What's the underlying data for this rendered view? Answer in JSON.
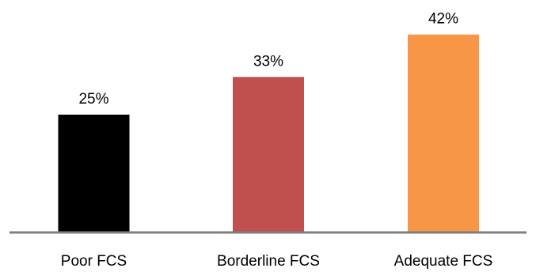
{
  "chart_data": {
    "type": "bar",
    "title": "",
    "xlabel": "",
    "ylabel": "",
    "categories": [
      "Poor FCS",
      "Borderline FCS",
      "Adequate FCS"
    ],
    "values": [
      25,
      33,
      42
    ],
    "data_labels": [
      "25%",
      "33%",
      "42%"
    ],
    "colors": [
      "#000000",
      "#c0504d",
      "#f79646"
    ],
    "axis_color": "#7f7f7f",
    "ylim": [
      0,
      50
    ],
    "grid": false,
    "legend": "none"
  }
}
